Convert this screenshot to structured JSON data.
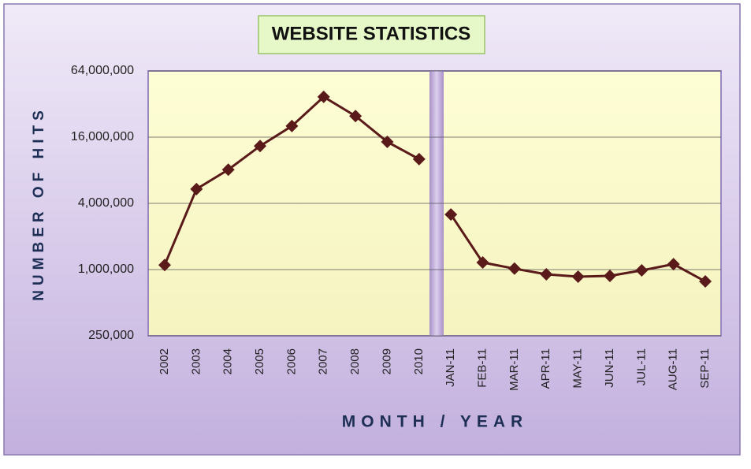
{
  "chart_data": [
    {
      "type": "line",
      "title": "WEBSITE STATISTICS",
      "y_label": "NUMBER OF HITS",
      "x_label": "MONTH / YEAR",
      "categories": [
        "2002",
        "2003",
        "2004",
        "2005",
        "2006",
        "2007",
        "2008",
        "2009",
        "2010"
      ],
      "values": [
        1100000,
        5400000,
        8100000,
        13300000,
        20200000,
        37200000,
        24900000,
        14500000,
        10100000
      ],
      "color": "#5a1a1a",
      "log_scale": true,
      "grid": true,
      "ylim": [
        250000,
        64000000
      ],
      "yticks": [
        {
          "value": 250000,
          "label": "250,000"
        },
        {
          "value": 1000000,
          "label": "1,000,000"
        },
        {
          "value": 4000000,
          "label": "4,000,000"
        },
        {
          "value": 16000000,
          "label": "16,000,000"
        },
        {
          "value": 64000000,
          "label": "64,000,000"
        }
      ]
    },
    {
      "type": "line",
      "categories": [
        "JAN-11",
        "FEB-11",
        "MAR-11",
        "APR-11",
        "MAY-11",
        "JUN-11",
        "JUL-11",
        "AUG-11",
        "SEP-11"
      ],
      "values": [
        3170000,
        1160000,
        1020000,
        906000,
        862000,
        876000,
        983000,
        1120000,
        780000
      ],
      "color": "#5a1a1a",
      "log_scale": true,
      "grid": true,
      "ylim": [
        250000,
        64000000
      ]
    }
  ]
}
